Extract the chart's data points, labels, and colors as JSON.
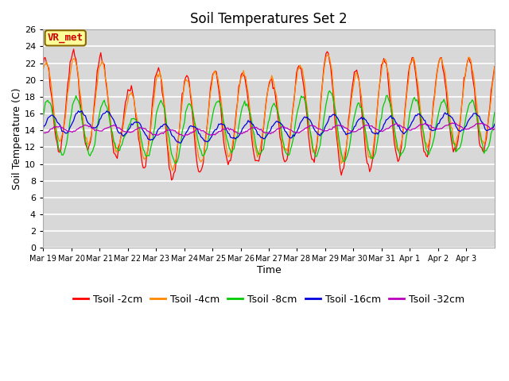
{
  "title": "Soil Temperatures Set 2",
  "xlabel": "Time",
  "ylabel": "Soil Temperature (C)",
  "ylim": [
    0,
    26
  ],
  "yticks": [
    0,
    2,
    4,
    6,
    8,
    10,
    12,
    14,
    16,
    18,
    20,
    22,
    24,
    26
  ],
  "date_labels": [
    "Mar 19",
    "Mar 20",
    "Mar 21",
    "Mar 22",
    "Mar 23",
    "Mar 24",
    "Mar 25",
    "Mar 26",
    "Mar 27",
    "Mar 28",
    "Mar 29",
    "Mar 30",
    "Mar 31",
    "Apr 1",
    "Apr 2",
    "Apr 3"
  ],
  "series_colors": {
    "Tsoil -2cm": "#ff0000",
    "Tsoil -4cm": "#ff8800",
    "Tsoil -8cm": "#00cc00",
    "Tsoil -16cm": "#0000dd",
    "Tsoil -32cm": "#bb00bb"
  },
  "annotation_text": "VR_met",
  "annotation_color": "#cc0000",
  "annotation_bg": "#ffff99",
  "annotation_border": "#886600",
  "fig_bg": "#ffffff",
  "plot_bg": "#d8d8d8",
  "grid_color": "#ffffff",
  "title_fontsize": 12,
  "axis_fontsize": 9,
  "tick_fontsize": 8,
  "legend_fontsize": 9
}
